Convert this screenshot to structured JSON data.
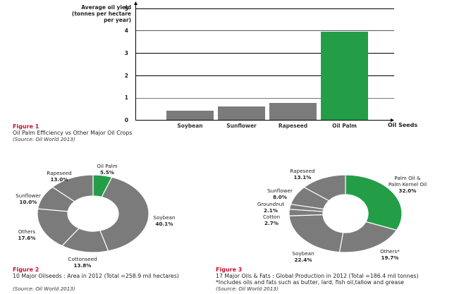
{
  "colors": {
    "highlight": "#239e47",
    "other": "#7b7b7b",
    "figure_label": "#c8102e",
    "axis": "#000000"
  },
  "figure1": {
    "number": "Figure 1",
    "caption": "Oil Palm Efficiency vs Other Major Oil Crops",
    "source": "(Source: Oil World 2013)",
    "y_title": [
      "Average oil yield",
      "(tonnes per hectare",
      "per year)"
    ],
    "x_title": "Oil Seeds",
    "ticks": [
      "0",
      "1",
      "2",
      "3",
      "4",
      "5"
    ]
  },
  "figure2": {
    "number": "Figure 2",
    "caption": "10 Major Oilseeds : Area in 2012 (Total =258.9 mil hectares)",
    "source": "(Source: Oil World 2013)",
    "labels": [
      {
        "name": "Oil Palm",
        "pct": "5.5%"
      },
      {
        "name": "Soybean",
        "pct": "40.1%"
      },
      {
        "name": "Cottonseed",
        "pct": "13.8%"
      },
      {
        "name": "Others",
        "pct": "17.6%"
      },
      {
        "name": "Sunflower",
        "pct": "10.0%"
      },
      {
        "name": "Rapeseed",
        "pct": "13.0%"
      }
    ]
  },
  "figure3": {
    "number": "Figure 3",
    "caption": "17 Major Oils & Fats : Global Production in 2012 (Total =186.4 mil tonnes)",
    "footnote": "*Includes oils and fats such as butter, lard, fish oil,tallow and grease",
    "source": "(Source: Oil World 2013)",
    "labels": [
      {
        "name": "Palm Oil &",
        "name2": "Palm Kernel Oil",
        "pct": "32.0%"
      },
      {
        "name": "Others*",
        "pct": "19.7%"
      },
      {
        "name": "Soybean",
        "pct": "22.4%"
      },
      {
        "name": "Cotton",
        "pct": "2.7%"
      },
      {
        "name": "Groundnut",
        "pct": "2.1%"
      },
      {
        "name": "Sunflower",
        "pct": "8.0%"
      },
      {
        "name": "Rapeseed",
        "pct": "13.1%"
      }
    ]
  },
  "chart_data": [
    {
      "type": "bar",
      "title": "Oil Palm Efficiency vs Other Major Oil Crops",
      "xlabel": "Oil Seeds",
      "ylabel": "Average oil yield (tonnes per hectare per year)",
      "categories": [
        "Soybean",
        "Sunflower",
        "Rapeseed",
        "Oil Palm"
      ],
      "values": [
        0.4,
        0.6,
        0.75,
        3.9
      ],
      "ylim": [
        0,
        5
      ],
      "yticks": [
        0,
        1,
        2,
        3,
        4,
        5
      ],
      "grid": true,
      "highlight": "Oil Palm"
    },
    {
      "type": "pie",
      "donut": true,
      "title": "10 Major Oilseeds : Area in 2012 (Total =258.9 mil hectares)",
      "categories": [
        "Oil Palm",
        "Soybean",
        "Cottonseed",
        "Others",
        "Sunflower",
        "Rapeseed"
      ],
      "values": [
        5.5,
        40.1,
        13.8,
        17.6,
        10.0,
        13.0
      ],
      "highlight": "Oil Palm"
    },
    {
      "type": "pie",
      "donut": true,
      "title": "17 Major Oils & Fats : Global Production in 2012 (Total =186.4 mil tonnes)",
      "categories": [
        "Palm Oil & Palm Kernel Oil",
        "Others*",
        "Soybean",
        "Cotton",
        "Groundnut",
        "Sunflower",
        "Rapeseed"
      ],
      "values": [
        32.0,
        19.7,
        22.4,
        2.7,
        2.1,
        8.0,
        13.1
      ],
      "highlight": "Palm Oil & Palm Kernel Oil"
    }
  ]
}
